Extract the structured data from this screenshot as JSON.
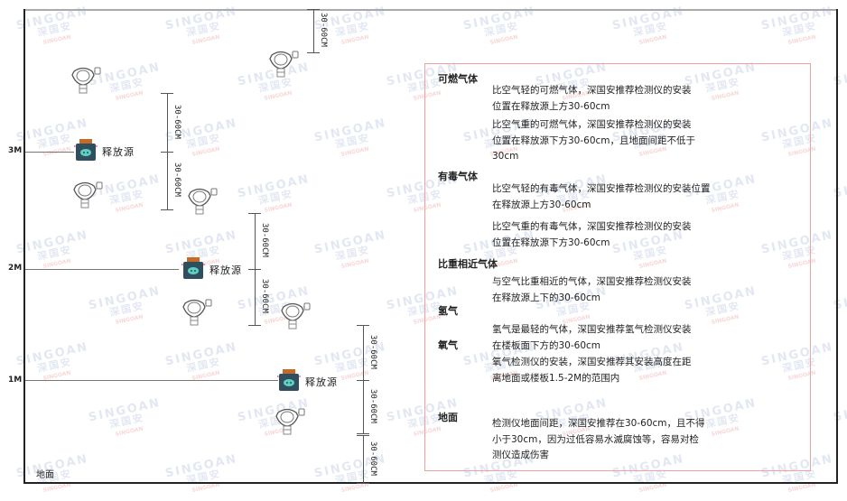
{
  "watermark": {
    "brand": "SINGOAN",
    "cn": "深国安"
  },
  "levels": {
    "l3": "3M",
    "l2": "2M",
    "l1": "1M",
    "floor": "地面"
  },
  "dimension_label": "30-60CM",
  "source_label": "释放源",
  "colors": {
    "notes_border": "#f0a0a0",
    "source_body": "#2f4f5f",
    "source_cap": "#c46a2a"
  },
  "notes": [
    {
      "heading": "可燃气体",
      "paragraphs": [
        [
          "比空气轻的可燃气体，深国安推荐检测仪的安装",
          "位置在释放源上方30-60cm"
        ],
        [
          "比空气重的可燃气体，深国安推荐检测仪的安装",
          "位置在释放源下方30-60cm，且地面间距不低于",
          "30cm"
        ]
      ]
    },
    {
      "heading": "有毒气体",
      "paragraphs": [
        [
          "比空气轻的有毒气体，深国安推荐检测仪的安装位置",
          "在释放源上方30-60cm"
        ],
        [
          "比空气重的有毒气体，深国安推荐检测仪的安装",
          "位置在释放源下方30-60cm"
        ]
      ]
    },
    {
      "heading": "比重相近气体",
      "paragraphs": [
        [
          "与空气比重相近的气体，深国安推荐检测仪安装",
          "在释放源上下的30-60cm"
        ]
      ]
    },
    {
      "heading": "氢气",
      "paragraphs": [
        [
          "氢气是最轻的气体，深国安推荐氢气检测仪安装",
          "在楼板面下方的30-60cm"
        ]
      ]
    },
    {
      "heading": "氧气",
      "paragraphs": [
        [
          "氧气检测仪的安装，深国安推荐其安装高度在距",
          "离地面或楼板1.5-2M的范围内"
        ]
      ]
    },
    {
      "heading": "地面",
      "paragraphs": [
        [
          "检测仪地面间距，深国安推荐在30-60cm，且不得",
          "小于30cm，因为过低容易水滅腐蚀等，容易对检",
          "测仪造成伤害"
        ]
      ]
    }
  ]
}
